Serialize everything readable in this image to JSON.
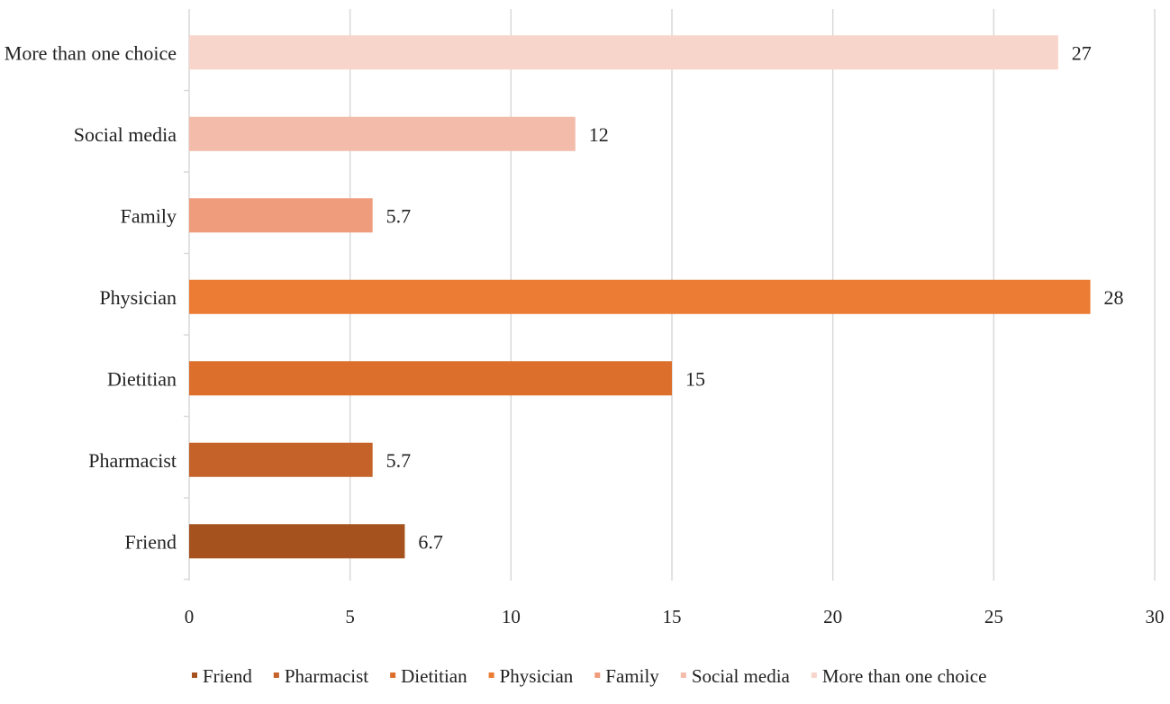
{
  "chart_data": {
    "type": "bar",
    "orientation": "horizontal",
    "title": "",
    "xlabel": "",
    "ylabel": "",
    "categories": [
      "Friend",
      "Pharmacist",
      "Dietitian",
      "Physician",
      "Family",
      "Social media",
      "More than one choice"
    ],
    "values": [
      6.7,
      5.7,
      15,
      28,
      5.7,
      12,
      27
    ],
    "value_labels": [
      "6.7",
      "5.7",
      "15",
      "28",
      "5.7",
      "12",
      "27"
    ],
    "colors": [
      "#a6521f",
      "#c4622a",
      "#dc6f2c",
      "#ec7c33",
      "#ef9c7c",
      "#f3bcaa",
      "#f8d5ca"
    ],
    "xlim": [
      0,
      30
    ],
    "x_ticks": [
      0,
      5,
      10,
      15,
      20,
      25,
      30
    ],
    "x_tick_labels": [
      "0",
      "5",
      "10",
      "15",
      "20",
      "25",
      "30"
    ],
    "grid": "vertical",
    "legend": {
      "position": "bottom",
      "entries": [
        "Friend",
        "Pharmacist",
        "Dietitian",
        "Physician",
        "Family",
        "Social media",
        "More than one choice"
      ]
    }
  }
}
